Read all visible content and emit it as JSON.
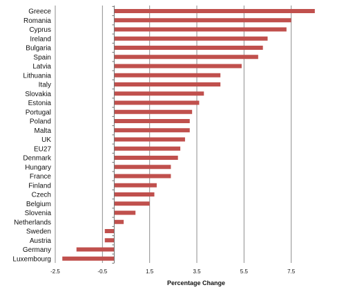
{
  "chart_data": {
    "type": "bar",
    "orientation": "horizontal",
    "categories": [
      "Greece",
      "Romania",
      "Cyprus",
      "Ireland",
      "Bulgaria",
      "Spain",
      "Latvia",
      "Lithuania",
      "Italy",
      "Slovakia",
      "Estonia",
      "Portugal",
      "Poland",
      "Malta",
      "UK",
      "EU27",
      "Denmark",
      "Hungary",
      "France",
      "Finland",
      "Czech",
      "Belgium",
      "Slovenia",
      "Netherlands",
      "Sweden",
      "Austria",
      "Germany",
      "Luxembourg"
    ],
    "values": [
      8.5,
      7.5,
      7.3,
      6.5,
      6.3,
      6.1,
      5.4,
      4.5,
      4.5,
      3.8,
      3.6,
      3.3,
      3.2,
      3.2,
      3.0,
      2.8,
      2.7,
      2.4,
      2.4,
      1.8,
      1.7,
      1.5,
      0.9,
      0.4,
      -0.4,
      -0.4,
      -1.6,
      -2.2
    ],
    "xlabel": "Percentage Change",
    "ylabel": "",
    "title": "",
    "xlim": [
      -2.5,
      9.5
    ],
    "xticks": [
      -2.5,
      -0.5,
      1.5,
      3.5,
      5.5,
      7.5
    ],
    "xtick_labels": [
      "-2.5",
      "-0.5",
      "1.5",
      "3.5",
      "5.5",
      "7.5"
    ],
    "grid": "vertical",
    "legend": "none",
    "bar_color": "#c0504d",
    "grid_color": "#8c8c8c"
  }
}
